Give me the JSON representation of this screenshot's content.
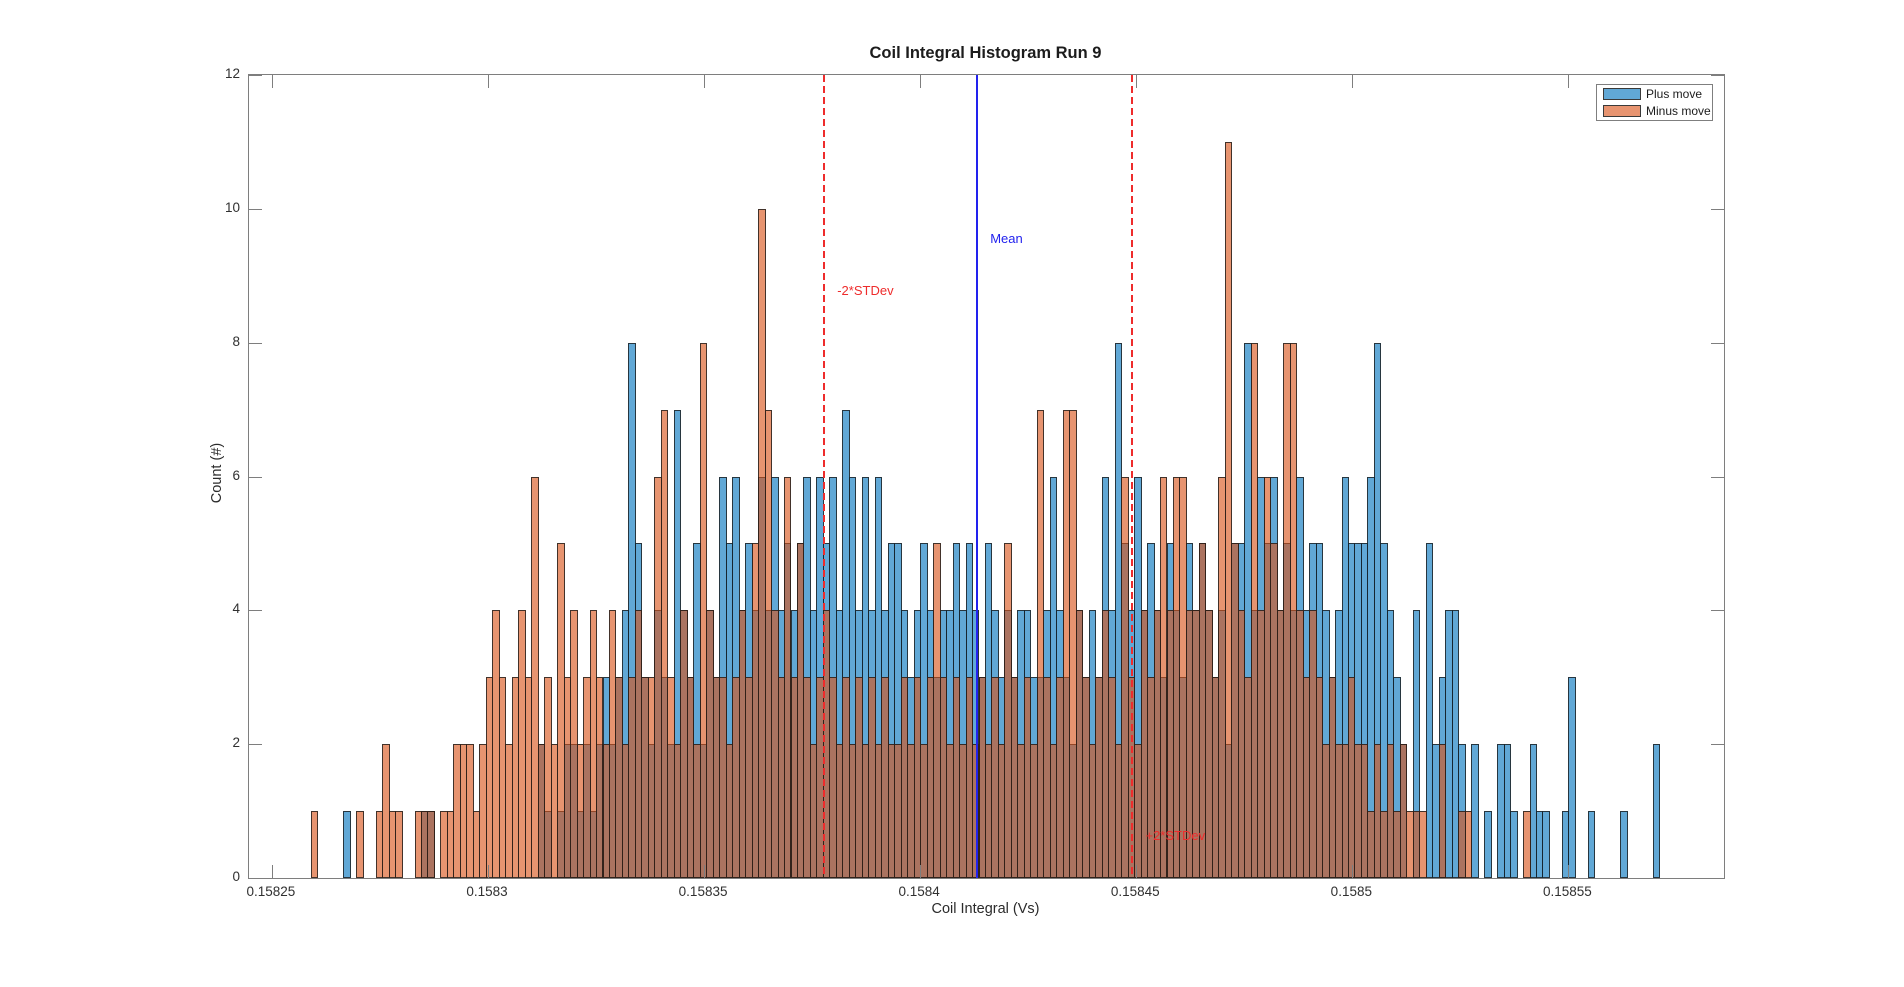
{
  "figure": {
    "title": "Coil Integral Histogram Run 9"
  },
  "axes": {
    "xlabel": "Coil Integral (Vs)",
    "ylabel": "Count (#)"
  },
  "legend": {
    "items": [
      {
        "label": "Plus move",
        "color": "rgba(0,114,189,0.62)"
      },
      {
        "label": "Minus move",
        "color": "rgba(217,83,25,0.62)"
      }
    ]
  },
  "annotations": {
    "mean_label": "Mean",
    "minus_label": "-2*STDev",
    "plus_label": "+2*STDev",
    "mean_color": "#2222ee",
    "std_color": "#ee2c2c"
  },
  "chart_data": {
    "type": "bar",
    "subtype": "overlaid-histogram",
    "title": "Coil Integral Histogram Run 9",
    "xlabel": "Coil Integral (Vs)",
    "ylabel": "Count (#)",
    "xlim": [
      0.1582447,
      0.158586
    ],
    "ylim": [
      0,
      12
    ],
    "grid": false,
    "legend_position": "top-right-inside",
    "x_ticks": [
      {
        "value": 0.15825,
        "label": "0.15825"
      },
      {
        "value": 0.1583,
        "label": "0.1583"
      },
      {
        "value": 0.15835,
        "label": "0.15835"
      },
      {
        "value": 0.1584,
        "label": "0.1584"
      },
      {
        "value": 0.15845,
        "label": "0.15845"
      },
      {
        "value": 0.1585,
        "label": "0.1585"
      },
      {
        "value": 0.15855,
        "label": "0.15855"
      }
    ],
    "y_ticks": [
      0,
      2,
      4,
      6,
      8,
      10,
      12
    ],
    "bin_start": 0.158259,
    "bin_width": 1.5e-06,
    "series": [
      {
        "name": "Plus move",
        "face_color": "rgba(0,114,189,0.62)",
        "edge_color": "rgba(25,25,25,0.8)",
        "counts": [
          0,
          0,
          0,
          0,
          0,
          1,
          0,
          0,
          0,
          0,
          0,
          0,
          0,
          0,
          0,
          0,
          0,
          1,
          1,
          0,
          0,
          0,
          0,
          0,
          0,
          0,
          0,
          0,
          0,
          0,
          0,
          0,
          0,
          0,
          0,
          2,
          1,
          0,
          1,
          2,
          2,
          1,
          2,
          1,
          2,
          3,
          2,
          3,
          4,
          8,
          5,
          3,
          2,
          4,
          3,
          2,
          7,
          4,
          3,
          5,
          2,
          4,
          3,
          6,
          5,
          6,
          4,
          5,
          4,
          6,
          4,
          6,
          4,
          5,
          4,
          5,
          6,
          4,
          6,
          5,
          6,
          4,
          7,
          6,
          4,
          6,
          4,
          6,
          4,
          5,
          5,
          4,
          3,
          4,
          5,
          4,
          3,
          4,
          4,
          5,
          4,
          5,
          4,
          3,
          5,
          4,
          3,
          4,
          3,
          4,
          4,
          3,
          3,
          4,
          6,
          4,
          3,
          2,
          4,
          3,
          4,
          3,
          6,
          4,
          8,
          5,
          4,
          6,
          4,
          5,
          4,
          3,
          5,
          4,
          3,
          5,
          4,
          5,
          4,
          3,
          4,
          2,
          5,
          5,
          8,
          4,
          6,
          5,
          6,
          4,
          5,
          4,
          6,
          4,
          5,
          5,
          4,
          3,
          4,
          6,
          5,
          5,
          5,
          6,
          8,
          5,
          4,
          3,
          2,
          0,
          4,
          0,
          5,
          2,
          3,
          4,
          4,
          2,
          0,
          2,
          0,
          1,
          0,
          2,
          2,
          1,
          0,
          0,
          2,
          1,
          1,
          0,
          0,
          1,
          3,
          0,
          0,
          1,
          0,
          0,
          0,
          0,
          1,
          0,
          0,
          0,
          0,
          2,
          0,
          0
        ]
      },
      {
        "name": "Minus move",
        "face_color": "rgba(217,83,25,0.62)",
        "edge_color": "rgba(25,25,25,0.8)",
        "counts": [
          1,
          0,
          0,
          0,
          0,
          0,
          0,
          1,
          0,
          0,
          1,
          2,
          1,
          1,
          0,
          0,
          1,
          1,
          1,
          0,
          1,
          1,
          2,
          2,
          2,
          1,
          2,
          3,
          4,
          3,
          2,
          3,
          4,
          3,
          6,
          2,
          3,
          2,
          5,
          3,
          4,
          2,
          3,
          4,
          3,
          2,
          4,
          3,
          2,
          3,
          4,
          3,
          3,
          6,
          7,
          3,
          2,
          4,
          3,
          2,
          8,
          4,
          3,
          3,
          2,
          3,
          4,
          3,
          5,
          10,
          7,
          4,
          3,
          6,
          3,
          5,
          3,
          2,
          3,
          4,
          3,
          2,
          3,
          2,
          3,
          2,
          3,
          2,
          3,
          2,
          2,
          3,
          2,
          3,
          2,
          3,
          5,
          3,
          2,
          3,
          2,
          3,
          2,
          3,
          2,
          3,
          2,
          5,
          3,
          2,
          3,
          2,
          7,
          3,
          2,
          3,
          7,
          7,
          4,
          3,
          2,
          3,
          4,
          3,
          2,
          6,
          3,
          2,
          4,
          3,
          4,
          6,
          4,
          6,
          6,
          4,
          4,
          5,
          4,
          3,
          6,
          11,
          5,
          4,
          3,
          8,
          4,
          6,
          5,
          4,
          8,
          8,
          4,
          3,
          4,
          3,
          2,
          3,
          2,
          2,
          3,
          2,
          2,
          1,
          2,
          1,
          2,
          1,
          2,
          1,
          1,
          1,
          0,
          0,
          2,
          0,
          0,
          1,
          1,
          0,
          0,
          0,
          0,
          0,
          0,
          0,
          0,
          1,
          0,
          0,
          0,
          0,
          0,
          0,
          0,
          0,
          0,
          0,
          0,
          0,
          0,
          0,
          0,
          0,
          0,
          0,
          0,
          0,
          0,
          0
        ]
      }
    ],
    "reference_lines": [
      {
        "name": "mean",
        "value": 0.1584132,
        "style": "solid",
        "color": "#2222ee",
        "label": "Mean"
      },
      {
        "name": "minus_2_stdev",
        "value": 0.1583778,
        "style": "dashed",
        "color": "#ee2c2c",
        "label": "-2*STDev"
      },
      {
        "name": "plus_2_stdev",
        "value": 0.1584489,
        "style": "dashed",
        "color": "#ee2c2c",
        "label": "+2*STDev"
      }
    ]
  }
}
